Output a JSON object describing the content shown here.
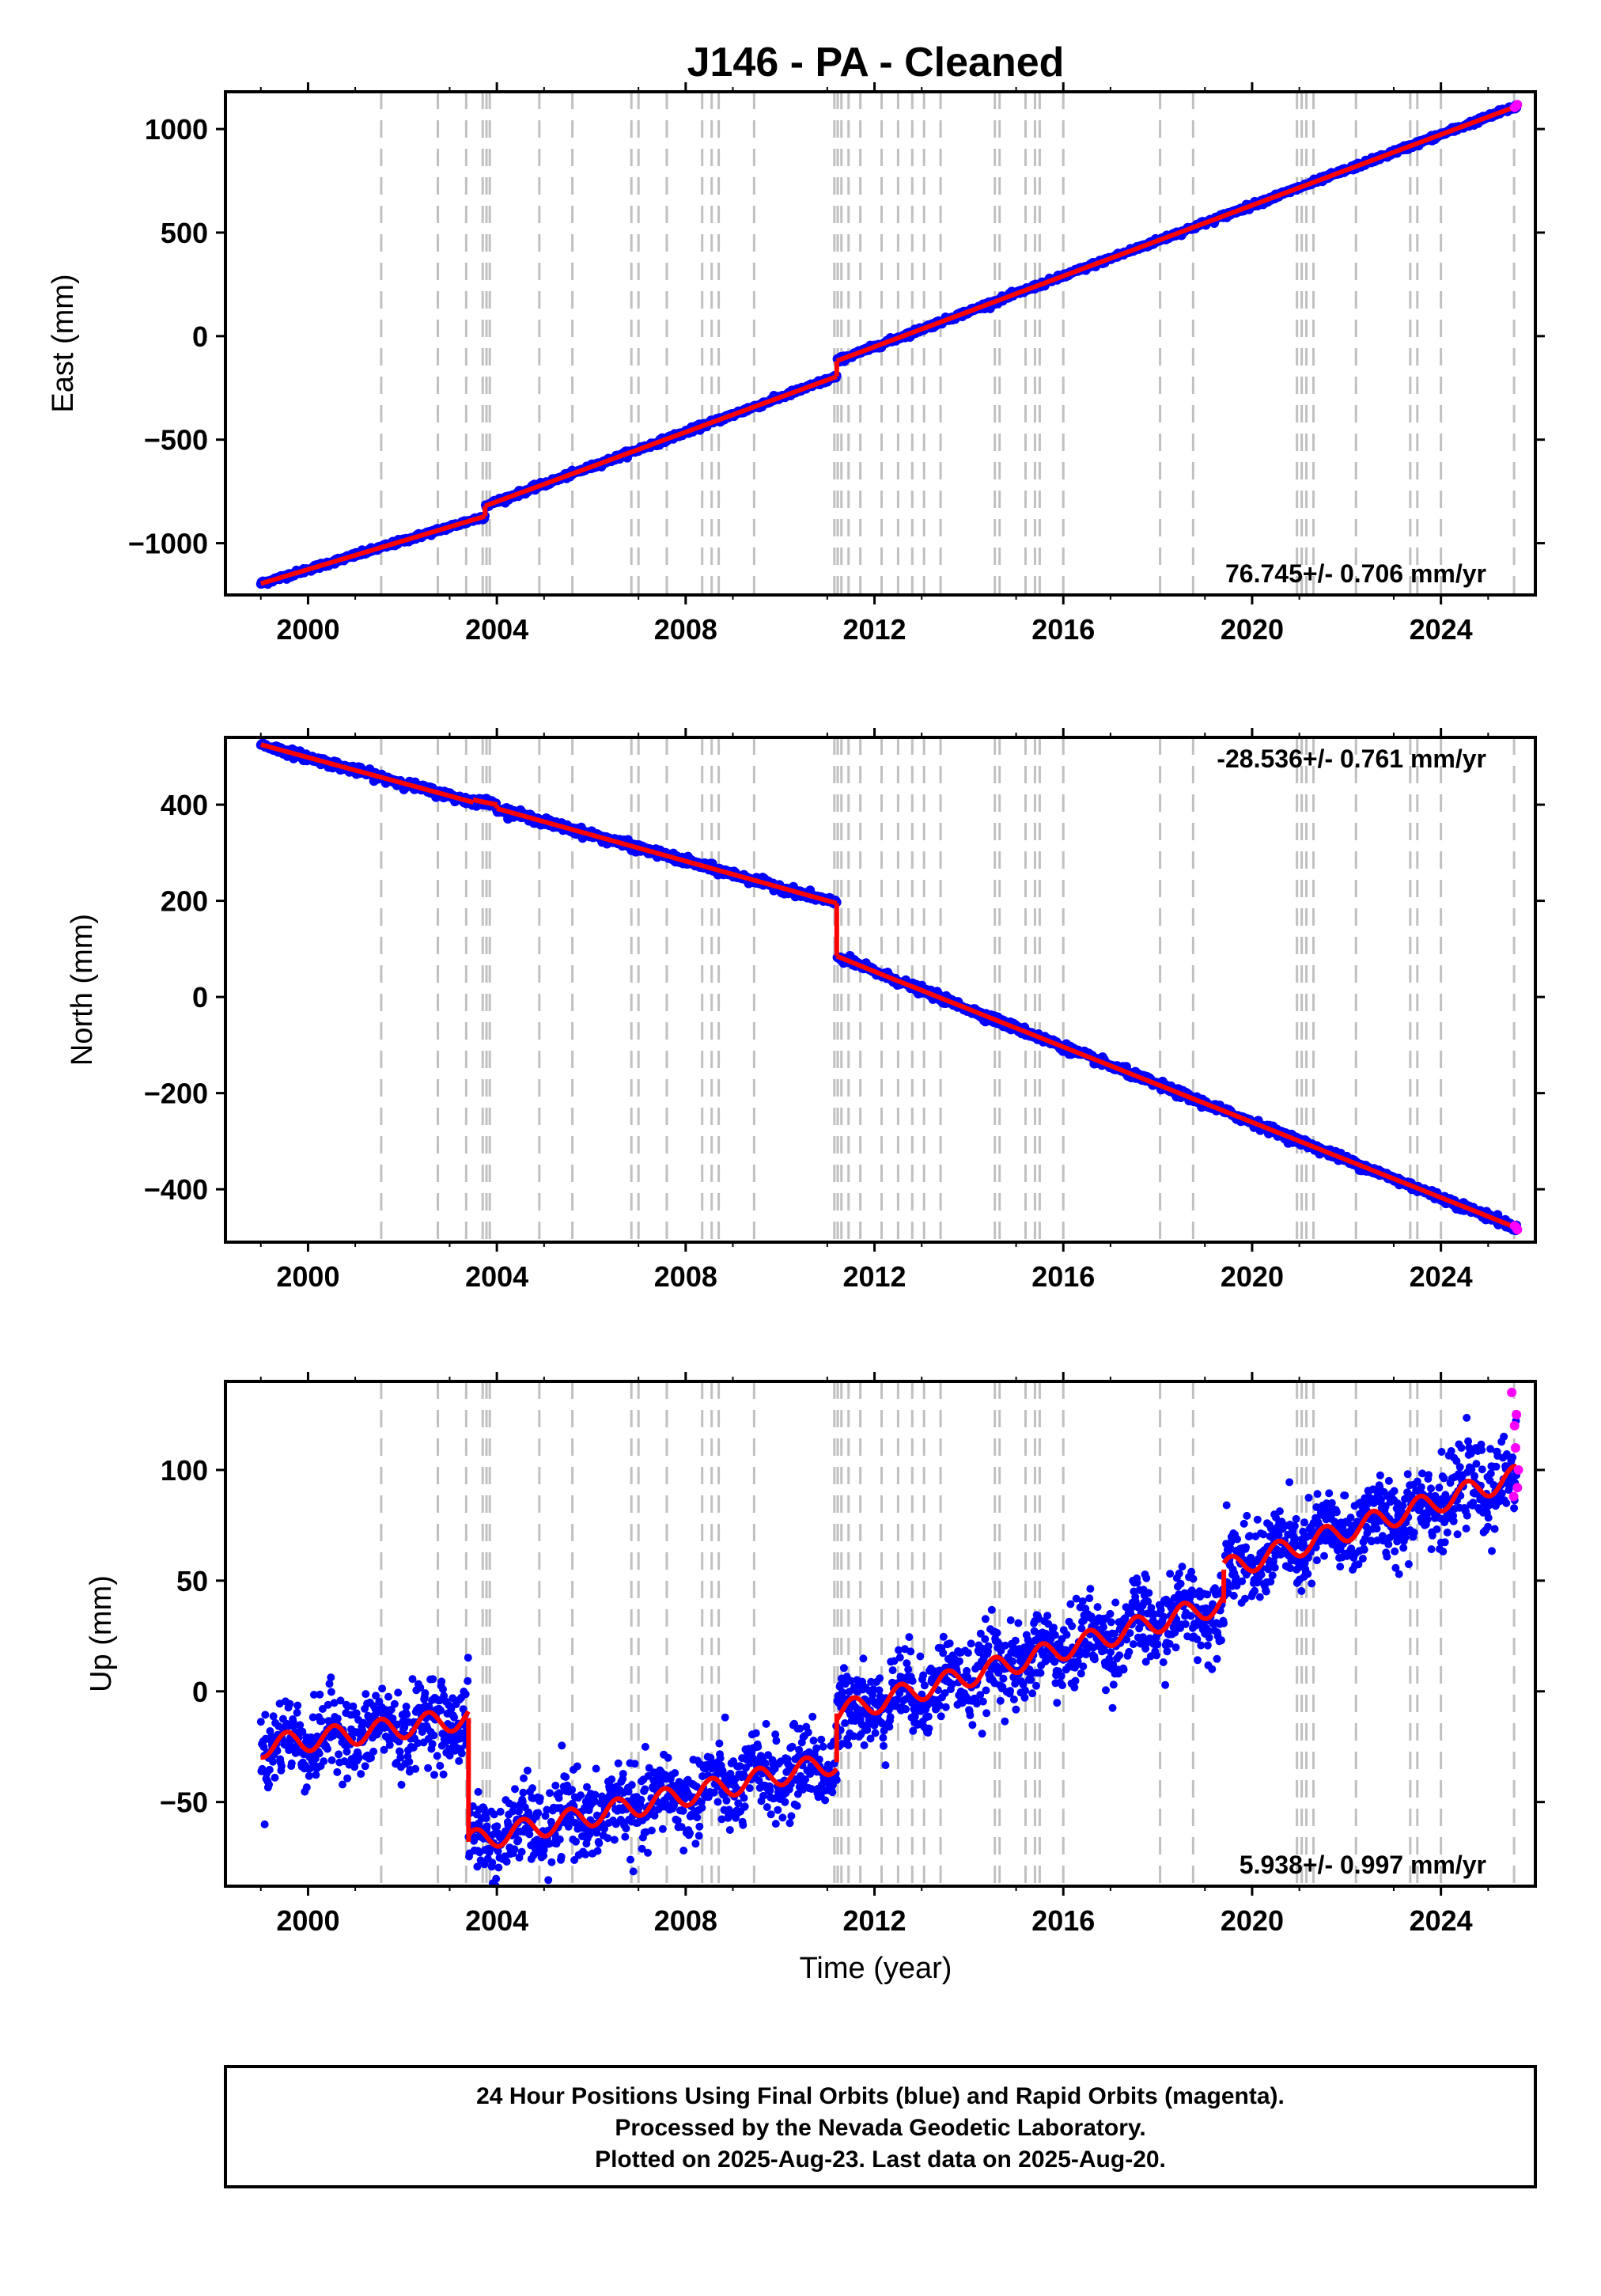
{
  "title": "J146  - PA - Cleaned",
  "xlabel": "Time (year)",
  "footer": {
    "line1": "24 Hour Positions Using Final Orbits (blue) and Rapid Orbits (magenta).",
    "line2": "Processed by the Nevada Geodetic Laboratory.",
    "line3": "Plotted on 2025-Aug-23. Last data on 2025-Aug-20."
  },
  "colors": {
    "final": "#0000ff",
    "rapid": "#ff00ff",
    "model": "#ff0000",
    "steps": "#c0c0c0"
  },
  "chart_data": [
    {
      "type": "scatter",
      "name": "east",
      "ylabel": "East (mm)",
      "rate": "76.745+/- 0.706 mm/yr",
      "xlim": [
        1998.25,
        2026.0
      ],
      "ylim": [
        -1250,
        1180
      ],
      "xticks": [
        "2000",
        "2004",
        "2008",
        "2012",
        "2016",
        "2020",
        "2024"
      ],
      "yticks": [
        "1000",
        "500",
        "0",
        "−500",
        "−1000"
      ],
      "ytick_values": [
        1000,
        500,
        0,
        -500,
        -1000
      ],
      "x_range": [
        1999.0,
        2025.6
      ],
      "model_segments": [
        {
          "x": [
            1999.0,
            2003.75
          ],
          "y": [
            -1195,
            -870
          ]
        },
        {
          "x": [
            2003.75,
            2011.2
          ],
          "y": [
            -820,
            -195
          ]
        },
        {
          "x": [
            2011.2,
            2025.6
          ],
          "y": [
            -120,
            1110
          ]
        }
      ],
      "scatter_sd": 6,
      "rapid_points": {
        "x": [
          2025.56,
          2025.6,
          2025.62
        ],
        "y": [
          1105,
          1112,
          1118
        ]
      }
    },
    {
      "type": "scatter",
      "name": "north",
      "ylabel": "North (mm)",
      "rate": "-28.536+/- 0.761 mm/yr",
      "xlim": [
        1998.25,
        2026.0
      ],
      "ylim": [
        -510,
        540
      ],
      "xticks": [
        "2000",
        "2004",
        "2008",
        "2012",
        "2016",
        "2020",
        "2024"
      ],
      "yticks": [
        "400",
        "200",
        "0",
        "−200",
        "−400"
      ],
      "ytick_values": [
        400,
        200,
        0,
        -200,
        -400
      ],
      "x_range": [
        1999.0,
        2025.6
      ],
      "model_segments": [
        {
          "x": [
            1999.0,
            2003.5
          ],
          "y": [
            525,
            405
          ]
        },
        {
          "x": [
            2003.5,
            2004.0
          ],
          "y": [
            410,
            400
          ]
        },
        {
          "x": [
            2004.0,
            2011.2
          ],
          "y": [
            392,
            195
          ]
        },
        {
          "x": [
            2011.2,
            2012.2
          ],
          "y": [
            85,
            45
          ]
        },
        {
          "x": [
            2012.2,
            2025.6
          ],
          "y": [
            45,
            -480
          ]
        }
      ],
      "scatter_sd": 4,
      "rapid_points": {
        "x": [
          2025.56,
          2025.6,
          2025.62
        ],
        "y": [
          -476,
          -480,
          -484
        ]
      }
    },
    {
      "type": "scatter",
      "name": "up",
      "ylabel": "Up (mm)",
      "rate": "5.938+/- 0.997 mm/yr",
      "xlim": [
        1998.25,
        2026.0
      ],
      "ylim": [
        -88,
        140
      ],
      "xticks": [
        "2000",
        "2004",
        "2008",
        "2012",
        "2016",
        "2020",
        "2024"
      ],
      "yticks": [
        "100",
        "50",
        "0",
        "−50"
      ],
      "ytick_values": [
        100,
        50,
        0,
        -50
      ],
      "x_range": [
        1999.0,
        2025.6
      ],
      "model_segments": [
        {
          "x": [
            1999.0,
            2003.4
          ],
          "y": [
            -25,
            -12
          ]
        },
        {
          "x": [
            2003.4,
            2011.2
          ],
          "y": [
            -68,
            -32
          ]
        },
        {
          "x": [
            2011.2,
            2019.4
          ],
          "y": [
            -10,
            40
          ]
        },
        {
          "x": [
            2019.4,
            2025.6
          ],
          "y": [
            55,
            97
          ]
        }
      ],
      "seasonal_amp": 5,
      "scatter_sd": 9,
      "rapid_points": {
        "x": [
          2025.5,
          2025.54,
          2025.56,
          2025.58,
          2025.6,
          2025.62,
          2025.64
        ],
        "y": [
          135,
          88,
          120,
          110,
          125,
          92,
          100
        ]
      }
    }
  ],
  "step_lines": [
    2001.55,
    2002.75,
    2003.35,
    2003.7,
    2003.78,
    2003.85,
    2004.9,
    2005.6,
    2006.85,
    2007.0,
    2007.6,
    2008.35,
    2008.55,
    2008.7,
    2009.45,
    2011.15,
    2011.22,
    2011.3,
    2011.45,
    2011.7,
    2012.15,
    2012.5,
    2012.8,
    2013.05,
    2013.4,
    2014.55,
    2014.65,
    2015.2,
    2015.4,
    2015.5,
    2016.0,
    2018.05,
    2018.75,
    2020.95,
    2021.05,
    2021.15,
    2021.3,
    2022.2,
    2023.35,
    2023.5,
    2024.0,
    2025.55
  ]
}
